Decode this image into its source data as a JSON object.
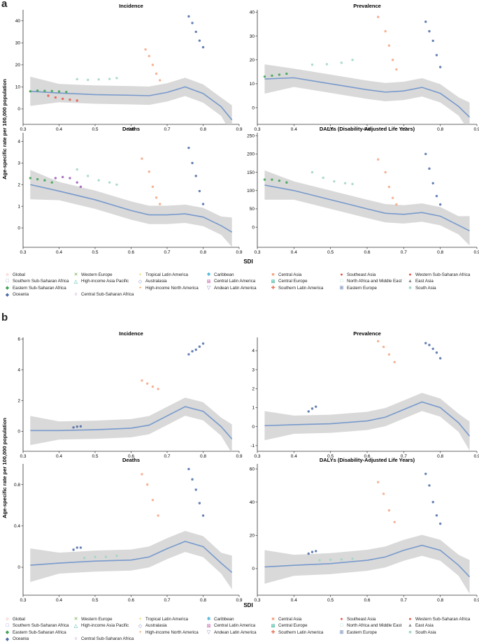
{
  "figure": {
    "sections": [
      {
        "letter": "a",
        "ylabel": "Age-specific rate per 100,000 population",
        "xlabel": "SDI"
      },
      {
        "letter": "b",
        "ylabel": "Age-specific rate per 100,000 population",
        "xlabel": "SDI"
      }
    ]
  },
  "legend": {
    "items": [
      {
        "label": "Global",
        "color": "#e8574b",
        "symbol": "○"
      },
      {
        "label": "Western Europe",
        "color": "#6ba84f",
        "symbol": "✕"
      },
      {
        "label": "Tropical Latin America",
        "color": "#e8c547",
        "symbol": "+"
      },
      {
        "label": "Caribbean",
        "color": "#4fb3d9",
        "symbol": "✱"
      },
      {
        "label": "Central Asia",
        "color": "#f4a582",
        "symbol": "■"
      },
      {
        "label": "Southeast Asia",
        "color": "#e8574b",
        "symbol": "●"
      },
      {
        "label": "Western Sub-Saharan Africa",
        "color": "#e8574b",
        "symbol": "●"
      },
      {
        "label": "Southern Sub-Saharan Africa",
        "color": "#8e8ec0",
        "symbol": "□"
      },
      {
        "label": "High-income Asia Pacific",
        "color": "#2aa8a0",
        "symbol": "△"
      },
      {
        "label": "Australasia",
        "color": "#7f7fbf",
        "symbol": "◇"
      },
      {
        "label": "Central Latin America",
        "color": "#c45fa8",
        "symbol": "⊠"
      },
      {
        "label": "Central Europe",
        "color": "#1fa88f",
        "symbol": "⊠"
      },
      {
        "label": "North Africa and Middle East",
        "color": "#9fd6c2",
        "symbol": "□"
      },
      {
        "label": "East Asia",
        "color": "#888888",
        "symbol": "▲"
      },
      {
        "label": "Eastern Sub-Saharan Africa",
        "color": "#3aa350",
        "symbol": "◆"
      },
      {
        "label": "",
        "color": "#ffffff",
        "symbol": ""
      },
      {
        "label": "High-income North America",
        "color": "#f08a3c",
        "symbol": "+"
      },
      {
        "label": "Andean Latin America",
        "color": "#7f7fbf",
        "symbol": "▽"
      },
      {
        "label": "Southern Latin America",
        "color": "#e86a4b",
        "symbol": "✚"
      },
      {
        "label": "Eastern Europe",
        "color": "#4a6aa8",
        "symbol": "⊞"
      },
      {
        "label": "South Asia",
        "color": "#9fd6c2",
        "symbol": "■"
      },
      {
        "label": "Oceania",
        "color": "#4a6aa8",
        "symbol": "◆"
      },
      {
        "label": "Central Sub-Saharan Africa",
        "color": "#9b59b6",
        "symbol": "○"
      }
    ]
  },
  "chart_data": [
    {
      "type": "scatter",
      "panel": "a",
      "title": "Incidence",
      "xlabel": "SDI",
      "ylabel": "Age-specific rate per 100,000 population",
      "xlim": [
        0.3,
        0.9
      ],
      "ylim": [
        -7,
        45
      ],
      "xticks": [
        0.3,
        0.4,
        0.5,
        0.6,
        0.7,
        0.8,
        0.9
      ],
      "yticks": [
        0,
        10,
        20,
        30,
        40
      ],
      "fit": {
        "x": [
          0.32,
          0.4,
          0.5,
          0.6,
          0.65,
          0.7,
          0.75,
          0.8,
          0.85,
          0.88
        ],
        "y": [
          8,
          7.2,
          6.5,
          6.2,
          6,
          7.5,
          10,
          7,
          1,
          -5
        ]
      },
      "series": [
        {
          "name": "Eastern Sub-Saharan Africa",
          "x": [
            0.32,
            0.34,
            0.36,
            0.38,
            0.4,
            0.42
          ],
          "y": [
            8,
            8.3,
            8.2,
            8.1,
            7.9,
            7.7
          ]
        },
        {
          "name": "Western Sub-Saharan Africa",
          "x": [
            0.37,
            0.39,
            0.41,
            0.43,
            0.45
          ],
          "y": [
            6,
            5.2,
            4.6,
            4.2,
            3.8
          ]
        },
        {
          "name": "South Asia",
          "x": [
            0.45,
            0.48,
            0.51,
            0.54,
            0.56
          ],
          "y": [
            13.5,
            13.2,
            13.4,
            13.6,
            14
          ]
        },
        {
          "name": "Central Asia",
          "x": [
            0.64,
            0.65,
            0.66,
            0.67,
            0.68
          ],
          "y": [
            27,
            24,
            20,
            16,
            13
          ]
        },
        {
          "name": "Eastern Europe",
          "x": [
            0.76,
            0.77,
            0.78,
            0.79,
            0.8
          ],
          "y": [
            42,
            39,
            35,
            31,
            28
          ]
        }
      ]
    },
    {
      "type": "scatter",
      "panel": "a",
      "title": "Prevalence",
      "xlabel": "SDI",
      "ylabel": "",
      "xlim": [
        0.3,
        0.9
      ],
      "ylim": [
        -7,
        41
      ],
      "xticks": [
        0.3,
        0.4,
        0.5,
        0.6,
        0.7,
        0.8,
        0.9
      ],
      "yticks": [
        0,
        10,
        20,
        30,
        40
      ],
      "fit": {
        "x": [
          0.32,
          0.4,
          0.5,
          0.6,
          0.65,
          0.7,
          0.75,
          0.8,
          0.85,
          0.88
        ],
        "y": [
          12,
          12.5,
          10,
          7.5,
          6.5,
          7,
          8.5,
          6,
          0.5,
          -4
        ]
      },
      "series": [
        {
          "name": "Eastern Sub-Saharan Africa",
          "x": [
            0.32,
            0.34,
            0.36,
            0.38
          ],
          "y": [
            13,
            13.4,
            13.8,
            14.2
          ]
        },
        {
          "name": "South Asia",
          "x": [
            0.45,
            0.49,
            0.53,
            0.56
          ],
          "y": [
            18,
            18.2,
            18.8,
            20
          ]
        },
        {
          "name": "Central Asia",
          "x": [
            0.63,
            0.65,
            0.66,
            0.67,
            0.68
          ],
          "y": [
            38,
            32,
            26,
            20,
            16
          ]
        },
        {
          "name": "Eastern Europe",
          "x": [
            0.76,
            0.77,
            0.78,
            0.79,
            0.8
          ],
          "y": [
            36,
            32,
            28,
            22,
            17
          ]
        }
      ]
    },
    {
      "type": "scatter",
      "panel": "a",
      "title": "Deaths",
      "xlabel": "SDI",
      "ylabel": "",
      "xlim": [
        0.3,
        0.9
      ],
      "ylim": [
        -0.9,
        4.4
      ],
      "xticks": [
        0.3,
        0.4,
        0.5,
        0.6,
        0.7,
        0.8,
        0.9
      ],
      "yticks": [
        0,
        1,
        2,
        3,
        4
      ],
      "fit": {
        "x": [
          0.32,
          0.4,
          0.5,
          0.6,
          0.65,
          0.7,
          0.75,
          0.8,
          0.85,
          0.88
        ],
        "y": [
          2,
          1.7,
          1.3,
          0.8,
          0.6,
          0.6,
          0.65,
          0.5,
          0.1,
          -0.2
        ]
      },
      "series": [
        {
          "name": "Eastern Sub-Saharan Africa",
          "x": [
            0.32,
            0.34,
            0.36,
            0.38
          ],
          "y": [
            2.3,
            2.25,
            2.2,
            2.1
          ]
        },
        {
          "name": "Central Sub-Saharan Africa",
          "x": [
            0.39,
            0.41,
            0.43,
            0.45,
            0.46
          ],
          "y": [
            2.3,
            2.35,
            2.3,
            2.1,
            1.9
          ]
        },
        {
          "name": "South Asia",
          "x": [
            0.45,
            0.48,
            0.51,
            0.54,
            0.56
          ],
          "y": [
            2.7,
            2.4,
            2.2,
            2.1,
            2.0
          ]
        },
        {
          "name": "Central Asia",
          "x": [
            0.63,
            0.65,
            0.66,
            0.67,
            0.68
          ],
          "y": [
            3.2,
            2.6,
            1.9,
            1.4,
            1.1
          ]
        },
        {
          "name": "Eastern Europe",
          "x": [
            0.76,
            0.77,
            0.78,
            0.79,
            0.8
          ],
          "y": [
            3.7,
            3,
            2.4,
            1.7,
            1.1
          ]
        }
      ]
    },
    {
      "type": "scatter",
      "panel": "a",
      "title": "DALYs (Disability-Adjusted Life Years)",
      "xlabel": "SDI",
      "ylabel": "",
      "xlim": [
        0.3,
        0.9
      ],
      "ylim": [
        -55,
        258
      ],
      "xticks": [
        0.3,
        0.4,
        0.5,
        0.6,
        0.7,
        0.8,
        0.9
      ],
      "yticks": [
        0,
        50,
        100,
        150,
        200,
        250
      ],
      "fit": {
        "x": [
          0.32,
          0.4,
          0.5,
          0.6,
          0.65,
          0.7,
          0.75,
          0.8,
          0.85,
          0.88
        ],
        "y": [
          115,
          100,
          75,
          50,
          38,
          35,
          40,
          30,
          5,
          -10
        ]
      },
      "series": [
        {
          "name": "Eastern Sub-Saharan Africa",
          "x": [
            0.32,
            0.34,
            0.36,
            0.38
          ],
          "y": [
            130,
            130,
            127,
            122
          ]
        },
        {
          "name": "South Asia",
          "x": [
            0.45,
            0.48,
            0.51,
            0.54,
            0.56
          ],
          "y": [
            150,
            135,
            125,
            120,
            118
          ]
        },
        {
          "name": "Central Asia",
          "x": [
            0.63,
            0.65,
            0.66,
            0.67,
            0.68
          ],
          "y": [
            185,
            150,
            110,
            80,
            62
          ]
        },
        {
          "name": "Eastern Europe",
          "x": [
            0.76,
            0.77,
            0.78,
            0.79,
            0.8
          ],
          "y": [
            200,
            160,
            120,
            85,
            62
          ]
        }
      ]
    },
    {
      "type": "scatter",
      "panel": "b",
      "title": "Incidence",
      "xlabel": "SDI",
      "ylabel": "Age-specific rate per 100,000 population",
      "xlim": [
        0.3,
        0.9
      ],
      "ylim": [
        -1.3,
        6.1
      ],
      "xticks": [
        0.3,
        0.4,
        0.5,
        0.6,
        0.7,
        0.8,
        0.9
      ],
      "yticks": [
        0,
        2,
        4,
        6
      ],
      "fit": {
        "x": [
          0.32,
          0.4,
          0.5,
          0.6,
          0.65,
          0.7,
          0.75,
          0.8,
          0.85,
          0.88
        ],
        "y": [
          0.05,
          0.05,
          0.1,
          0.2,
          0.4,
          1,
          1.6,
          1.3,
          0.3,
          -0.5
        ]
      },
      "series": [
        {
          "name": "Oceania",
          "x": [
            0.44,
            0.45,
            0.46
          ],
          "y": [
            0.25,
            0.3,
            0.32
          ]
        },
        {
          "name": "Central Asia",
          "x": [
            0.63,
            0.645,
            0.66,
            0.675
          ],
          "y": [
            3.3,
            3.1,
            2.9,
            2.75
          ]
        },
        {
          "name": "Eastern Europe",
          "x": [
            0.76,
            0.77,
            0.78,
            0.79,
            0.8
          ],
          "y": [
            5.0,
            5.2,
            5.3,
            5.5,
            5.7
          ]
        }
      ]
    },
    {
      "type": "scatter",
      "panel": "b",
      "title": "Prevalence",
      "xlabel": "SDI",
      "ylabel": "",
      "xlim": [
        0.3,
        0.9
      ],
      "ylim": [
        -1.3,
        4.7
      ],
      "xticks": [
        0.3,
        0.4,
        0.5,
        0.6,
        0.7,
        0.8,
        0.9
      ],
      "yticks": [
        -1,
        0,
        1,
        2,
        3,
        4
      ],
      "fit": {
        "x": [
          0.32,
          0.4,
          0.5,
          0.6,
          0.65,
          0.7,
          0.75,
          0.8,
          0.85,
          0.88
        ],
        "y": [
          0.05,
          0.1,
          0.15,
          0.3,
          0.5,
          0.9,
          1.3,
          1,
          0.2,
          -0.5
        ]
      },
      "series": [
        {
          "name": "Oceania",
          "x": [
            0.44,
            0.45,
            0.46
          ],
          "y": [
            0.8,
            0.95,
            1.05
          ]
        },
        {
          "name": "Central Asia",
          "x": [
            0.63,
            0.645,
            0.66,
            0.675
          ],
          "y": [
            4.5,
            4.2,
            3.8,
            3.4
          ]
        },
        {
          "name": "Eastern Europe",
          "x": [
            0.76,
            0.77,
            0.78,
            0.79,
            0.8
          ],
          "y": [
            4.4,
            4.3,
            4.1,
            3.9,
            3.6
          ]
        }
      ]
    },
    {
      "type": "scatter",
      "panel": "b",
      "title": "Deaths",
      "xlabel": "SDI",
      "ylabel": "",
      "xlim": [
        0.3,
        0.9
      ],
      "ylim": [
        -0.27,
        1.0
      ],
      "xticks": [
        0.3,
        0.4,
        0.5,
        0.6,
        0.7,
        0.8,
        0.9
      ],
      "yticks": [
        0,
        0.4,
        0.8
      ],
      "fit": {
        "x": [
          0.32,
          0.4,
          0.5,
          0.6,
          0.65,
          0.7,
          0.75,
          0.8,
          0.85,
          0.88
        ],
        "y": [
          0.02,
          0.04,
          0.06,
          0.07,
          0.1,
          0.18,
          0.25,
          0.2,
          0.04,
          -0.05
        ]
      },
      "series": [
        {
          "name": "Oceania",
          "x": [
            0.44,
            0.45,
            0.46
          ],
          "y": [
            0.17,
            0.19,
            0.19
          ]
        },
        {
          "name": "South Asia",
          "x": [
            0.47,
            0.5,
            0.53,
            0.56
          ],
          "y": [
            0.09,
            0.1,
            0.1,
            0.11
          ]
        },
        {
          "name": "Central Asia",
          "x": [
            0.63,
            0.645,
            0.66,
            0.675
          ],
          "y": [
            0.9,
            0.8,
            0.65,
            0.5
          ]
        },
        {
          "name": "Eastern Europe",
          "x": [
            0.76,
            0.77,
            0.78,
            0.79,
            0.8
          ],
          "y": [
            0.95,
            0.85,
            0.75,
            0.62,
            0.5
          ]
        }
      ]
    },
    {
      "type": "scatter",
      "panel": "b",
      "title": "DALYs (Disability-Adjusted Life Years)",
      "xlabel": "SDI",
      "ylabel": "",
      "xlim": [
        0.3,
        0.9
      ],
      "ylim": [
        -16,
        63
      ],
      "xticks": [
        0.3,
        0.4,
        0.5,
        0.6,
        0.7,
        0.8,
        0.9
      ],
      "yticks": [
        0,
        20,
        40,
        60
      ],
      "fit": {
        "x": [
          0.32,
          0.4,
          0.5,
          0.6,
          0.65,
          0.7,
          0.75,
          0.8,
          0.85,
          0.88
        ],
        "y": [
          1,
          2,
          3,
          5,
          7,
          11,
          14,
          11,
          2,
          -5
        ]
      },
      "series": [
        {
          "name": "Oceania",
          "x": [
            0.44,
            0.45,
            0.46
          ],
          "y": [
            9,
            10,
            10.5
          ]
        },
        {
          "name": "South Asia",
          "x": [
            0.47,
            0.5,
            0.53,
            0.56
          ],
          "y": [
            5,
            5.3,
            5.5,
            6
          ]
        },
        {
          "name": "Central Asia",
          "x": [
            0.63,
            0.645,
            0.66,
            0.675
          ],
          "y": [
            52,
            45,
            35,
            28
          ]
        },
        {
          "name": "Eastern Europe",
          "x": [
            0.76,
            0.77,
            0.78,
            0.79,
            0.8
          ],
          "y": [
            57,
            50,
            40,
            32,
            27
          ]
        }
      ]
    }
  ]
}
